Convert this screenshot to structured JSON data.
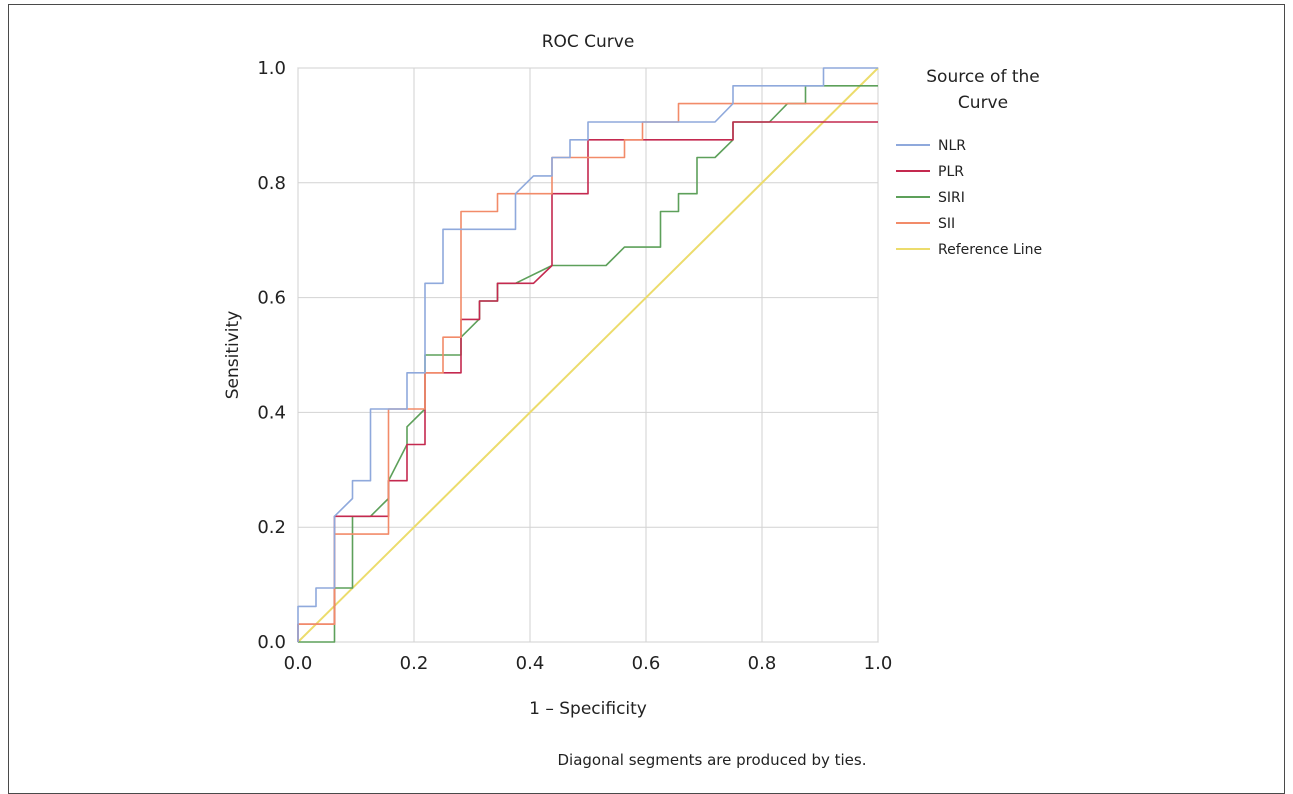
{
  "chart_data": {
    "type": "line",
    "title": "ROC Curve",
    "xlabel": "1 – Specificity",
    "ylabel": "Sensitivity",
    "xlim": [
      0,
      1
    ],
    "ylim": [
      0,
      1
    ],
    "x_ticks": [
      "0.0",
      "0.2",
      "0.4",
      "0.6",
      "0.8",
      "1.0"
    ],
    "y_ticks": [
      "0.0",
      "0.2",
      "0.4",
      "0.6",
      "0.8",
      "1.0"
    ],
    "grid": true,
    "legend_title": "Source of the Curve",
    "legend_position": "right",
    "footnote": "Diagonal segments are produced by ties.",
    "series": [
      {
        "name": "NLR",
        "color": "#8fa9dc",
        "points": [
          [
            0,
            0
          ],
          [
            0,
            0.062
          ],
          [
            0.031,
            0.062
          ],
          [
            0.031,
            0.094
          ],
          [
            0.063,
            0.094
          ],
          [
            0.063,
            0.219
          ],
          [
            0.094,
            0.25
          ],
          [
            0.094,
            0.281
          ],
          [
            0.125,
            0.281
          ],
          [
            0.125,
            0.406
          ],
          [
            0.156,
            0.406
          ],
          [
            0.188,
            0.406
          ],
          [
            0.188,
            0.469
          ],
          [
            0.219,
            0.469
          ],
          [
            0.219,
            0.625
          ],
          [
            0.25,
            0.625
          ],
          [
            0.25,
            0.719
          ],
          [
            0.281,
            0.719
          ],
          [
            0.375,
            0.719
          ],
          [
            0.375,
            0.781
          ],
          [
            0.406,
            0.812
          ],
          [
            0.438,
            0.812
          ],
          [
            0.438,
            0.844
          ],
          [
            0.469,
            0.844
          ],
          [
            0.469,
            0.875
          ],
          [
            0.5,
            0.875
          ],
          [
            0.5,
            0.906
          ],
          [
            0.719,
            0.906
          ],
          [
            0.75,
            0.938
          ],
          [
            0.75,
            0.969
          ],
          [
            0.906,
            0.969
          ],
          [
            0.906,
            1.0
          ],
          [
            1.0,
            1.0
          ]
        ]
      },
      {
        "name": "PLR",
        "color": "#c4294f",
        "points": [
          [
            0,
            0
          ],
          [
            0,
            0.031
          ],
          [
            0.063,
            0.031
          ],
          [
            0.063,
            0.219
          ],
          [
            0.156,
            0.219
          ],
          [
            0.156,
            0.281
          ],
          [
            0.188,
            0.281
          ],
          [
            0.188,
            0.344
          ],
          [
            0.219,
            0.344
          ],
          [
            0.219,
            0.469
          ],
          [
            0.281,
            0.469
          ],
          [
            0.281,
            0.562
          ],
          [
            0.313,
            0.562
          ],
          [
            0.313,
            0.594
          ],
          [
            0.344,
            0.594
          ],
          [
            0.344,
            0.625
          ],
          [
            0.375,
            0.625
          ],
          [
            0.406,
            0.625
          ],
          [
            0.438,
            0.656
          ],
          [
            0.438,
            0.781
          ],
          [
            0.469,
            0.781
          ],
          [
            0.5,
            0.781
          ],
          [
            0.5,
            0.875
          ],
          [
            0.563,
            0.875
          ],
          [
            0.594,
            0.875
          ],
          [
            0.625,
            0.875
          ],
          [
            0.75,
            0.875
          ],
          [
            0.75,
            0.906
          ],
          [
            1.0,
            0.906
          ]
        ]
      },
      {
        "name": "SIRI",
        "color": "#5da05a",
        "points": [
          [
            0,
            0
          ],
          [
            0.063,
            0
          ],
          [
            0.063,
            0.094
          ],
          [
            0.094,
            0.094
          ],
          [
            0.094,
            0.219
          ],
          [
            0.125,
            0.219
          ],
          [
            0.156,
            0.25
          ],
          [
            0.156,
            0.281
          ],
          [
            0.188,
            0.344
          ],
          [
            0.188,
            0.375
          ],
          [
            0.219,
            0.406
          ],
          [
            0.219,
            0.5
          ],
          [
            0.281,
            0.5
          ],
          [
            0.281,
            0.531
          ],
          [
            0.313,
            0.563
          ],
          [
            0.313,
            0.594
          ],
          [
            0.344,
            0.594
          ],
          [
            0.344,
            0.625
          ],
          [
            0.375,
            0.625
          ],
          [
            0.438,
            0.656
          ],
          [
            0.531,
            0.656
          ],
          [
            0.563,
            0.688
          ],
          [
            0.625,
            0.688
          ],
          [
            0.625,
            0.75
          ],
          [
            0.656,
            0.75
          ],
          [
            0.656,
            0.781
          ],
          [
            0.688,
            0.781
          ],
          [
            0.688,
            0.844
          ],
          [
            0.719,
            0.844
          ],
          [
            0.75,
            0.875
          ],
          [
            0.75,
            0.906
          ],
          [
            0.813,
            0.906
          ],
          [
            0.844,
            0.938
          ],
          [
            0.875,
            0.938
          ],
          [
            0.875,
            0.969
          ],
          [
            1.0,
            0.969
          ]
        ]
      },
      {
        "name": "SII",
        "color": "#f28b69",
        "points": [
          [
            0,
            0
          ],
          [
            0,
            0.031
          ],
          [
            0.063,
            0.031
          ],
          [
            0.063,
            0.188
          ],
          [
            0.156,
            0.188
          ],
          [
            0.156,
            0.406
          ],
          [
            0.219,
            0.406
          ],
          [
            0.219,
            0.469
          ],
          [
            0.25,
            0.469
          ],
          [
            0.25,
            0.531
          ],
          [
            0.281,
            0.531
          ],
          [
            0.281,
            0.75
          ],
          [
            0.344,
            0.75
          ],
          [
            0.344,
            0.781
          ],
          [
            0.438,
            0.781
          ],
          [
            0.438,
            0.844
          ],
          [
            0.5,
            0.844
          ],
          [
            0.531,
            0.844
          ],
          [
            0.563,
            0.844
          ],
          [
            0.563,
            0.875
          ],
          [
            0.594,
            0.875
          ],
          [
            0.594,
            0.906
          ],
          [
            0.656,
            0.906
          ],
          [
            0.656,
            0.938
          ],
          [
            1.0,
            0.938
          ]
        ]
      },
      {
        "name": "Reference Line",
        "color": "#ecdc6c",
        "points": [
          [
            0,
            0
          ],
          [
            1,
            1
          ]
        ]
      }
    ]
  }
}
